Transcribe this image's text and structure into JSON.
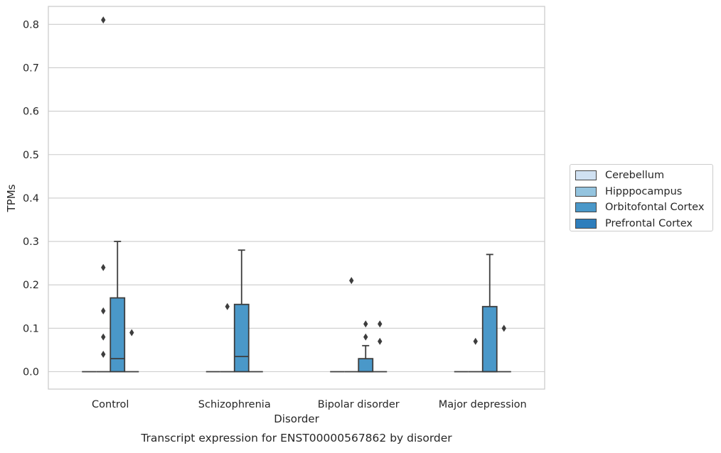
{
  "chart_data": {
    "type": "box",
    "xlabel": "Disorder",
    "ylabel": "TPMs",
    "caption": "Transcript expression for ENST00000567862 by disorder",
    "ylim": [
      -0.04,
      0.85
    ],
    "yticks": [
      "0.0",
      "0.1",
      "0.2",
      "0.3",
      "0.4",
      "0.5",
      "0.6",
      "0.7",
      "0.8"
    ],
    "ytick_values": [
      0.0,
      0.1,
      0.2,
      0.3,
      0.4,
      0.5,
      0.6,
      0.7,
      0.8
    ],
    "grid": "horizontal",
    "legend_position": "right",
    "categories": [
      "Control",
      "Schizophrenia",
      "Bipolar disorder",
      "Major depression"
    ],
    "series": [
      {
        "name": "Cerebellum",
        "color": "#d0e1f2",
        "boxes": [
          {
            "category": "Control",
            "q1": 0,
            "median": 0,
            "q3": 0,
            "whislo": 0,
            "whishi": 0,
            "fliers": []
          },
          {
            "category": "Schizophrenia",
            "q1": 0,
            "median": 0,
            "q3": 0,
            "whislo": 0,
            "whishi": 0,
            "fliers": []
          },
          {
            "category": "Bipolar disorder",
            "q1": 0,
            "median": 0,
            "q3": 0,
            "whislo": 0,
            "whishi": 0,
            "fliers": []
          },
          {
            "category": "Major depression",
            "q1": 0,
            "median": 0,
            "q3": 0,
            "whislo": 0,
            "whishi": 0,
            "fliers": []
          }
        ]
      },
      {
        "name": "Hipppocampus",
        "color": "#94c4df",
        "boxes": [
          {
            "category": "Control",
            "q1": 0,
            "median": 0,
            "q3": 0,
            "whislo": 0,
            "whishi": 0,
            "fliers": [
              0.14,
              0.08,
              0.04,
              0.24,
              0.81
            ]
          },
          {
            "category": "Schizophrenia",
            "q1": 0,
            "median": 0,
            "q3": 0,
            "whislo": 0,
            "whishi": 0,
            "fliers": [
              0.15
            ]
          },
          {
            "category": "Bipolar disorder",
            "q1": 0,
            "median": 0,
            "q3": 0,
            "whislo": 0,
            "whishi": 0,
            "fliers": [
              0.21
            ]
          },
          {
            "category": "Major depression",
            "q1": 0,
            "median": 0,
            "q3": 0,
            "whislo": 0,
            "whishi": 0,
            "fliers": [
              0.07
            ]
          }
        ]
      },
      {
        "name": "Orbitofontal Cortex",
        "color": "#4a98c9",
        "boxes": [
          {
            "category": "Control",
            "q1": 0,
            "median": 0.03,
            "q3": 0.17,
            "whislo": 0,
            "whishi": 0.3,
            "fliers": []
          },
          {
            "category": "Schizophrenia",
            "q1": 0,
            "median": 0.035,
            "q3": 0.155,
            "whislo": 0,
            "whishi": 0.28,
            "fliers": []
          },
          {
            "category": "Bipolar disorder",
            "q1": 0,
            "median": 0,
            "q3": 0.03,
            "whislo": 0,
            "whishi": 0.06,
            "fliers": [
              0.11,
              0.08
            ]
          },
          {
            "category": "Major depression",
            "q1": 0,
            "median": 0,
            "q3": 0.15,
            "whislo": 0,
            "whishi": 0.27,
            "fliers": []
          }
        ]
      },
      {
        "name": "Prefrontal Cortex",
        "color": "#2e7ebc",
        "boxes": [
          {
            "category": "Control",
            "q1": 0,
            "median": 0,
            "q3": 0,
            "whislo": 0,
            "whishi": 0,
            "fliers": [
              0.09
            ]
          },
          {
            "category": "Schizophrenia",
            "q1": 0,
            "median": 0,
            "q3": 0,
            "whislo": 0,
            "whishi": 0,
            "fliers": []
          },
          {
            "category": "Bipolar disorder",
            "q1": 0,
            "median": 0,
            "q3": 0,
            "whislo": 0,
            "whishi": 0,
            "fliers": [
              0.11,
              0.07
            ]
          },
          {
            "category": "Major depression",
            "q1": 0,
            "median": 0,
            "q3": 0,
            "whislo": 0,
            "whishi": 0,
            "fliers": [
              0.1
            ]
          }
        ]
      }
    ]
  },
  "legend": {
    "items": [
      {
        "label": "Cerebellum",
        "color": "#d0e1f2"
      },
      {
        "label": "Hipppocampus",
        "color": "#94c4df"
      },
      {
        "label": "Orbitofontal Cortex",
        "color": "#4a98c9"
      },
      {
        "label": "Prefrontal Cortex",
        "color": "#2e7ebc"
      }
    ]
  }
}
